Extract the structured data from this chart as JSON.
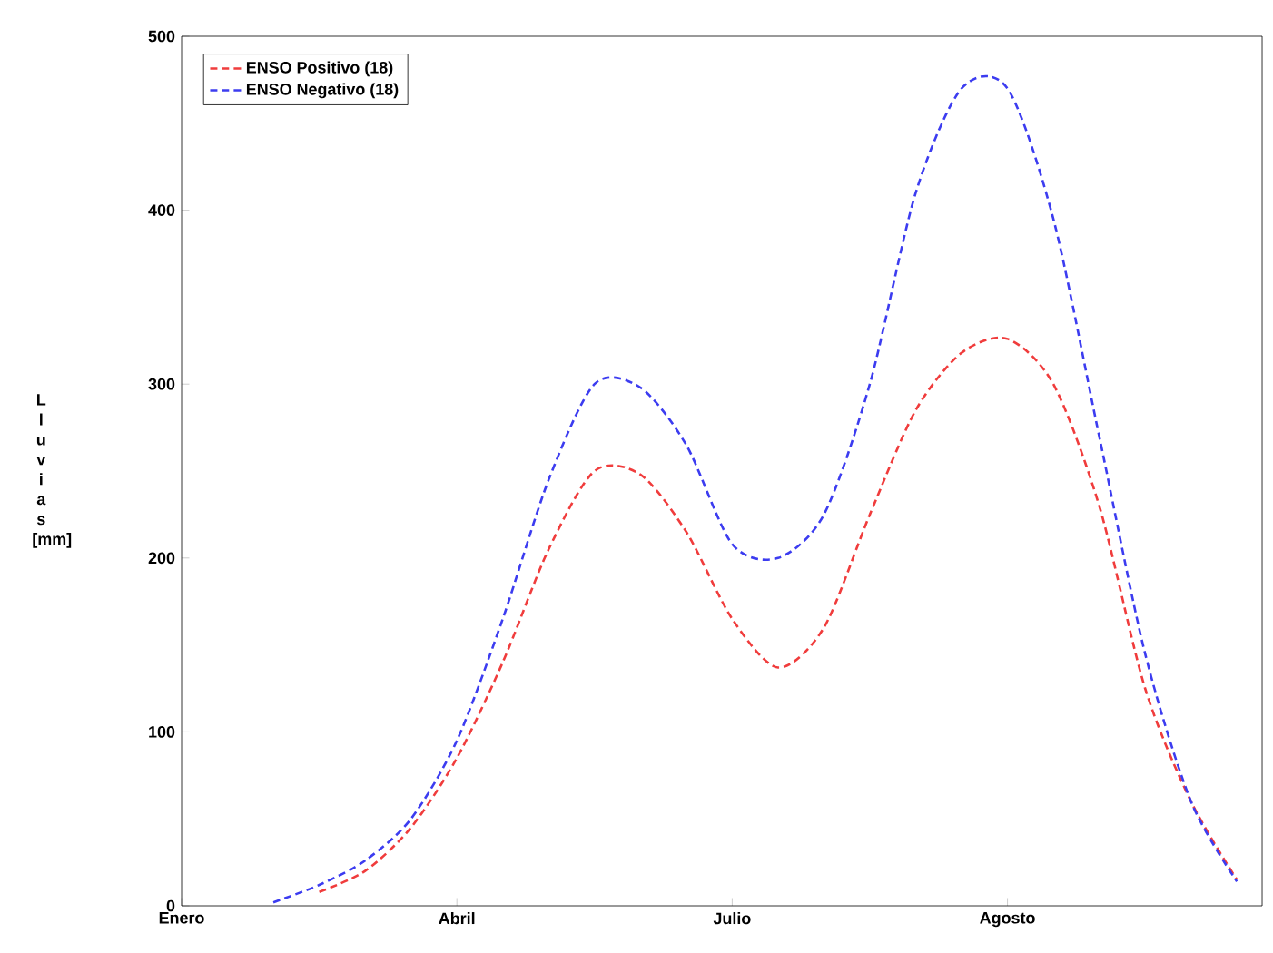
{
  "chart_data": {
    "type": "line",
    "ylabel": "L l u v i a s [mm]",
    "categories": [
      "Enero",
      null,
      null,
      null,
      null,
      null,
      "Abril",
      null,
      null,
      null,
      null,
      null,
      "Julio",
      null,
      null,
      null,
      null,
      null,
      "Agosto",
      null,
      null,
      null,
      null,
      null
    ],
    "ylim": [
      0,
      500
    ],
    "yticks": [
      0,
      100,
      200,
      300,
      400,
      500
    ],
    "legend": "top left",
    "grid": false,
    "marker": "none",
    "line_style": "dashed",
    "series": [
      {
        "name": "ENSO Positivo (18)",
        "color": "#f03c3c",
        "values": [
          null,
          null,
          null,
          8,
          20,
          45,
          85,
          140,
          205,
          250,
          248,
          215,
          165,
          137,
          160,
          225,
          285,
          318,
          326,
          300,
          230,
          125,
          60,
          15
        ]
      },
      {
        "name": "ENSO Negativo (18)",
        "color": "#3c3cf0",
        "values": [
          null,
          null,
          2,
          12,
          26,
          50,
          95,
          165,
          245,
          300,
          298,
          265,
          208,
          200,
          225,
          300,
          410,
          470,
          470,
          395,
          270,
          145,
          60,
          14
        ]
      }
    ]
  }
}
